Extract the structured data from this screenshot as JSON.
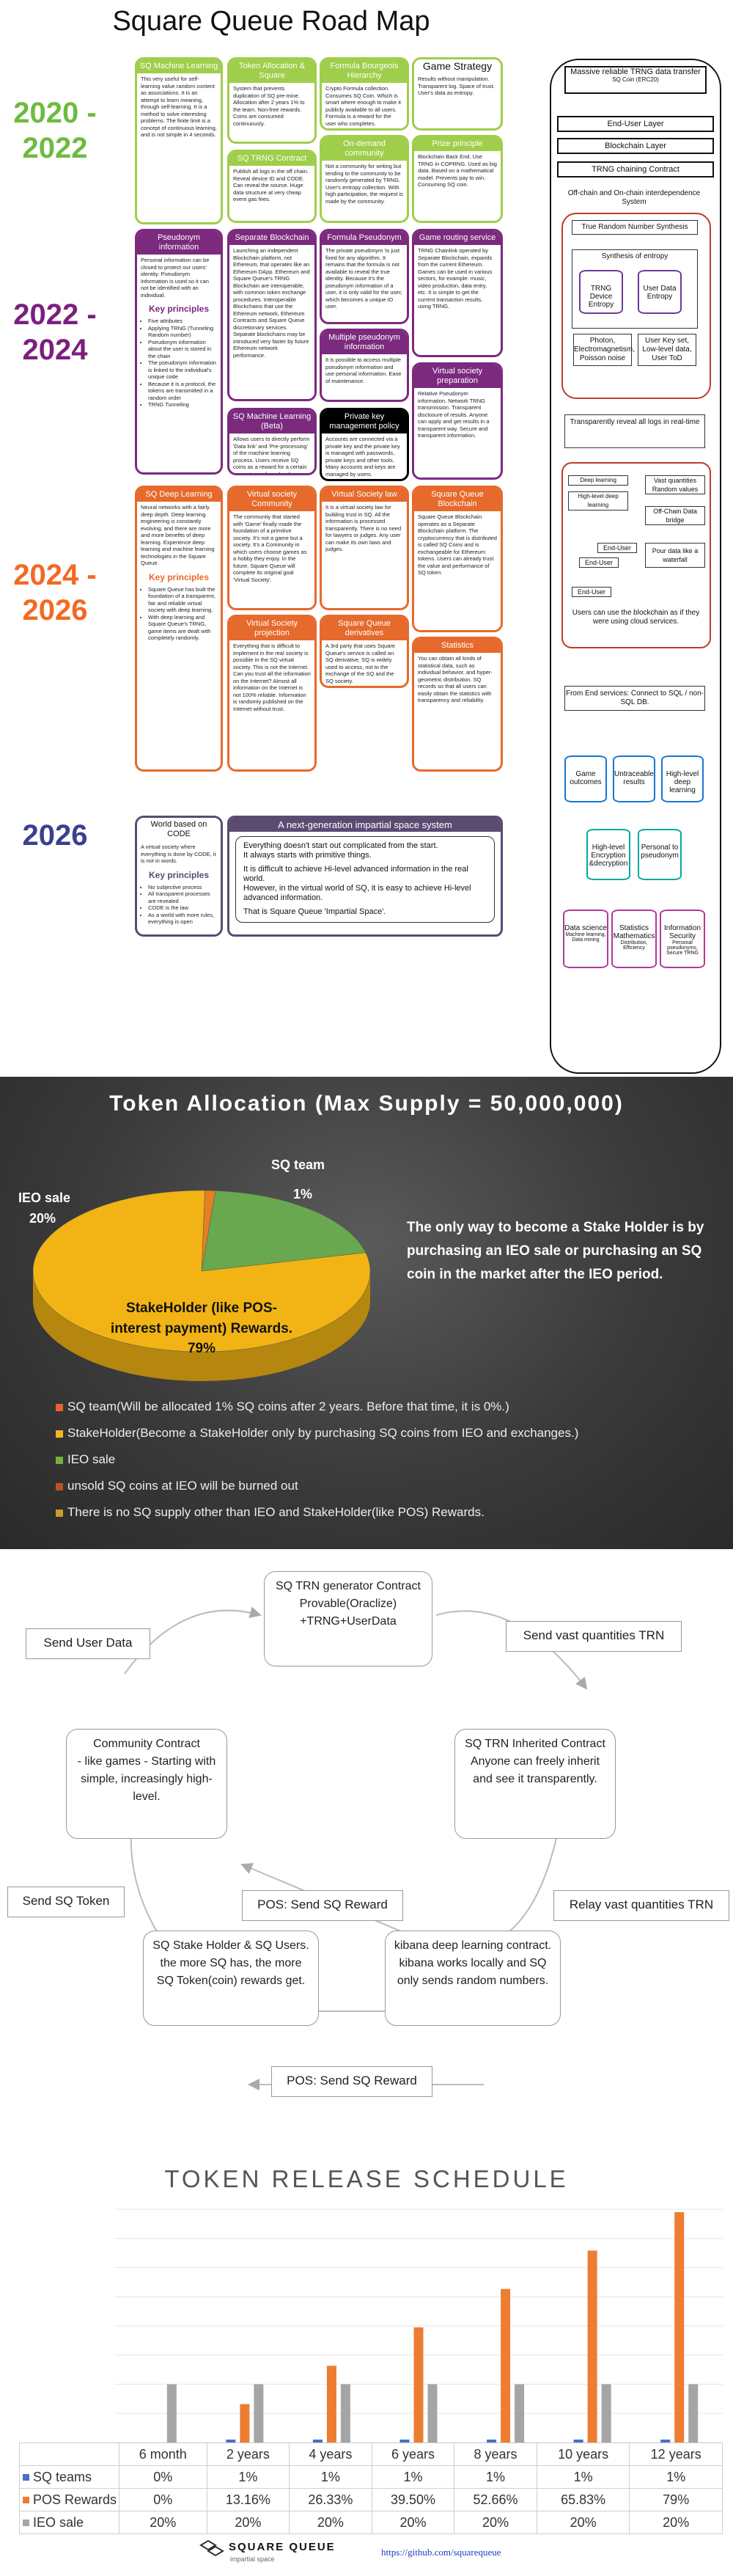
{
  "roadmap": {
    "title": "Square Queue Road Map",
    "years": [
      "2020 -\n2022",
      "2022 -\n2024",
      "2024 -\n2026",
      "2026"
    ],
    "year_colors": [
      "#6dbb3f",
      "#7b1f7e",
      "#f26a22",
      "#3b3f8f"
    ],
    "col1": {
      "sq_ml": {
        "head": "SQ Machine Learning",
        "body": "This very useful for self-learning value random content as associations. It is an attempt to learn meaning, through self-learning. It is a method to solve interesting problems. The finite limit is a concept of continuous learning, and is not simple in 4 seconds."
      },
      "pseudonym": {
        "head": "Pseudonym information",
        "body": "Personal information can be closed to protect our users' identity. Pseudonym information is used so it can not be identified with an individual.",
        "kp_title": "Key principles",
        "kp": [
          "Five attributes",
          "Applying TRNG (Tunneling Random number)",
          "Pseudonym information about the user is stored in the chain",
          "The pseudonym information is linked to the individual's unique code",
          "Because it is a protocol, the tokens are transmitted in a random order",
          "TRNG Tunneling"
        ]
      },
      "sq_deep": {
        "head": "SQ Deep Learning",
        "body": "Neural networks with a fairly deep depth. Deep learning engineering is constantly evolving, and there are more and more benefits of deep learning. Experience deep learning and machine learning technologies in the Square Queue.",
        "kp_title": "Key principles",
        "kp": [
          "Square Queue has built the foundation of a transparent, fair and reliable virtual society with deep learning.",
          "With deep learning and Square Queue's TRNG, game items are dealt with completely randomly."
        ]
      },
      "world": {
        "head": "World based on CODE",
        "body": "A virtual society where everything is done by CODE, it is not in words.",
        "kp_title": "Key principles",
        "kp": [
          "No subjective process",
          "All transparent processes are revealed",
          "CODE is the law",
          "As a world with more rules, everything is open"
        ]
      }
    },
    "col2": {
      "token_alloc": {
        "head": "Token Allocation & Square",
        "body": "System that prevents duplication of SQ pre-mine. Allocation after 2 years 1% to the team. Non-free rewards. Coins are consumed continuously."
      },
      "sq_trng": {
        "head": "SQ TRNG Contract",
        "body": "Publish all logs in the off chain. Reveal device ID and CODE. Can reveal the source. Huge data structure at very cheap event gas fees."
      },
      "sep_bc": {
        "head": "Separate Blockchain",
        "body": "Launching an independent Blockchain platform, not Ethereum, that operates like an Ethereum DApp. Ethereum and Square Queue's TRNG Blockchain are interoperable, with common token exchange procedures. Interoperable Blockchains that use the Ethereum network, Ethereum Contracts and Square Queue discretionary services. Separate blockchains may be introduced very faster by future Ethereum network performance."
      },
      "sq_ml_b": {
        "head": "SQ Machine Learning (Beta)",
        "body": "Allows users to directly perform 'Data link' and 'Pre-processing' of the machine learning process. Users receive SQ coins as a reward for a certain percentage of gas fee they used as a service."
      },
      "virtual_comm": {
        "head": "Virtual society Community",
        "body": "The community that started with 'Game' finally made the foundation of a primitive society. It's not a game but a society. It's a Community in which users choose games as a hobby they enjoy. In the future, Square Queue will complete its original goal 'Virtual Society'."
      },
      "virtual_proj": {
        "head": "Virtual Society projection",
        "body": "Everything that is difficult to implement in the real society is possible in the SQ virtual society. This is not the Internet. Can you trust all the information on the Internet? Almost all information on the Internet is not 100% reliable. Information is randomly published on the Internet without trust."
      }
    },
    "col3": {
      "formula": {
        "head": "Formula Bourgeois Hierarchy",
        "body": "Crypto Formula collection. Consumes SQ Coin. Which is smart where enough to make it publicly available to all users. Formula is a reward for the user who completes."
      },
      "on_demand": {
        "head": "On-demand community",
        "body": "Not a community for writing but tending to the community to be randomly generated by TRNG. User's entropy collection. With high participation, the request is made by the community."
      },
      "formula_p": {
        "head": "Formula Pseudonym",
        "body": "The private pseudonym 'is just fixed for any algorithm. It remains that the formula is not available to reveal the true identity. Because it's the pseudonym information of a user, it is only valid for the user, which becomes a unique ID user."
      },
      "multi_pseudo": {
        "head": "Multiple pseudonym information",
        "body": "It is possible to access multiple pseudonym information and use personal information. Ease of maintenance."
      },
      "private_key": {
        "head": "Private key management policy",
        "body": "Accounts are connected via a private key and the private key is managed with passwords, private keys and other tools. Many accounts and keys are managed by users."
      },
      "vs_law": {
        "head": "Virtual Society law",
        "body": "It is a virtual society law for building trust in SQ. All the information is processed transparently. There is no need for lawyers or judges. Any user can make its own laws and judges."
      },
      "sq_deriv": {
        "head": "Square Queue derivatives",
        "body": "A 3rd party that uses Square Queue's service is called an SQ derivative. SQ is widely used to access, not to the exchange of the SQ and the SQ society."
      }
    },
    "col4": {
      "game_strategy": {
        "head": "Game Strategy",
        "body": "Results without manipulation. Transparent log. Space of trust. User's data as entropy."
      },
      "prize": {
        "head": "Prize principle",
        "body": "Blockchain Back End. Use TRNG in COPRNG. Used as big data. Based on a mathematical model. Prevents pay to win. Consuming SQ coin."
      },
      "game_route": {
        "head": "Game routing service",
        "body": "TRNG Chainlink operated by Separate Blockchain, expands from the current Ethereum. Games can be used in various sectors, for example: music, video production, data entry, etc. It is simple to get the current transaction results, using TRNG."
      },
      "vs_prep": {
        "head": "Virtual society preparation",
        "body": "Relative Pseudonym information. Network TRNG transmission. Transparent disclosure of results. Anyone can apply and get results in a transparent way. Secure and transparent information."
      },
      "sq_bc": {
        "head": "Square Queue Blockchain",
        "body": "Square Queue Blockchain operates as a Separate Blockchain platform. The cryptocurrency that is distributed is called SQ Coins and is exchangeable for Ethereum tokens. Users can already trust the value and performance of SQ token."
      },
      "statistics": {
        "head": "Statistics",
        "body": "You can obtain all kinds of statistical data, such as individual behavior, and hyper-geometric distribution. SQ records so that all users can easily obtain the statistics with transparency and reliability."
      }
    },
    "next_gen": {
      "head": "A next-generation impartial space system",
      "lines": [
        "Everything doesn't start out complicated from the start.",
        "It always starts with primitive things.",
        "",
        "It is difficult to achieve Hi-level advanced information in the real world.",
        "However, in the virtual world of SQ, it is easy to achieve Hi-level advanced information.",
        "",
        "That is Square Queue 'Impartial Space'."
      ]
    },
    "stack": {
      "top_title": "Massive reliable TRNG data transfer",
      "top_sub": "SQ Coin (ERC20)",
      "end_user": "End-User Layer",
      "blockchain": "Blockchain Layer",
      "trng_chain": "TRNG chaining Contract",
      "offchain_title": "Off-chain and On-chain interdependence System",
      "true_rng": "True Random Number Synthesis",
      "synth": "Synthesis of entropy",
      "trng_device": "TRNG Device Entropy",
      "user_data": "User Data Entropy",
      "photon": "Photon, Electromagnetism, Poisson noise",
      "user_key": "User Key set, Low-level data, User ToD",
      "transparent_logs": "Transparently reveal all logs in real-time",
      "deep_learning": "Deep learning",
      "high_level_deep": "High-level deep learning",
      "vast_quantities": "Vast quantities Random values",
      "offchain_data": "Off-Chain Data bridge",
      "end_user_small": "End-User",
      "pour_data": "Pour data like a waterfall",
      "use_blockchain": "Users can use the blockchain as if they were using cloud services.",
      "from_end": "From End services: Connect to SQL / non-SQL DB.",
      "game_outcomes": "Game outcomes",
      "untraceable": "Untraceable results",
      "high_deep": "High-level deep learning",
      "high_enc": "High-level Encryption &decryption",
      "personal_pseudo": "Personal to pseudonym",
      "data_science": "Data science",
      "stat_math": "Statistics Mathematics",
      "info_sec": "Information Security",
      "ds_sub": "Machine learning, Data mining",
      "sm_sub": "Distribution, Efficiency",
      "is_sub": "Personal pseudonyms, Secure TRNG"
    }
  },
  "allocation": {
    "title": "Token Allocation (Max Supply = 50,000,000)",
    "slices": [
      {
        "name": "SQ team",
        "value": 1,
        "label": "SQ team",
        "pct": "1%",
        "color": "#e67e22"
      },
      {
        "name": "IEO sale",
        "value": 20,
        "label": "IEO sale",
        "pct": "20%",
        "color": "#6aa84f"
      },
      {
        "name": "StakeHolder",
        "value": 79,
        "label": "StakeHolder (like POS-interest payment) Rewards.",
        "pct": "79%",
        "color": "#f1b414"
      }
    ],
    "note": "The only way to become a Stake Holder is by purchasing an IEO sale or purchasing an SQ coin in the market after the IEO period.",
    "legend": [
      {
        "text": "SQ team(Will be allocated 1% SQ coins after 2 years. Before that time, it is 0%.)",
        "color": "#e8612c"
      },
      {
        "text": "StakeHolder(Become a StakeHolder only by purchasing SQ coins from IEO and exchanges.)",
        "color": "#f3b521"
      },
      {
        "text": "IEO sale",
        "color": "#76b043"
      },
      {
        "text": "unsold SQ coins at IEO will be burned out",
        "color": "#b4551f"
      },
      {
        "text": "There is no SQ supply other than IEO and StakeHolder(like POS) Rewards.",
        "color": "#c99a2d"
      }
    ]
  },
  "flow": {
    "trn_gen": "SQ TRN generator Contract\nProvable(Oraclize) +TRNG+UserData",
    "community": "Community Contract\n- like games - Starting with simple, increasingly high-level.",
    "inherited": "SQ TRN Inherited Contract\nAnyone can freely inherit and see it transparently.",
    "stake": "SQ Stake Holder & SQ Users. the more SQ has, the more SQ Token(coin) rewards get.",
    "kibana": "kibana deep learning contract. kibana works locally and SQ only sends random numbers.",
    "send_user_data": "Send User Data",
    "send_vast": "Send vast quantities TRN",
    "send_token": "Send SQ Token",
    "relay_vast": "Relay vast quantities TRN",
    "pos1": "POS: Send SQ Reward",
    "pos2": "POS: Send SQ Reward"
  },
  "chart_data": {
    "type": "bar",
    "title": "TOKEN RELEASE SCHEDULE",
    "categories": [
      "6 month",
      "2 years",
      "4 years",
      "6 years",
      "8 years",
      "10 years",
      "12 years"
    ],
    "series": [
      {
        "name": "SQ teams",
        "color": "#4472c4",
        "values": [
          0,
          1,
          1,
          1,
          1,
          1,
          1
        ],
        "labels": [
          "0%",
          "1%",
          "1%",
          "1%",
          "1%",
          "1%",
          "1%"
        ]
      },
      {
        "name": "POS Rewards",
        "color": "#ed7d31",
        "values": [
          0,
          13.16,
          26.33,
          39.5,
          52.66,
          65.83,
          79
        ],
        "labels": [
          "0%",
          "13.16%",
          "26.33%",
          "39.50%",
          "52.66%",
          "65.83%",
          "79%"
        ]
      },
      {
        "name": "IEO sale",
        "color": "#a5a5a5",
        "values": [
          20,
          20,
          20,
          20,
          20,
          20,
          20
        ],
        "labels": [
          "20%",
          "20%",
          "20%",
          "20%",
          "20%",
          "20%",
          "20%"
        ]
      }
    ],
    "ylim": [
      0,
      80
    ],
    "grid": true
  },
  "footer": {
    "logo_text": "SQUARE QUEUE",
    "tagline": "impartial space",
    "link": "https://github.com/squarequeue"
  }
}
